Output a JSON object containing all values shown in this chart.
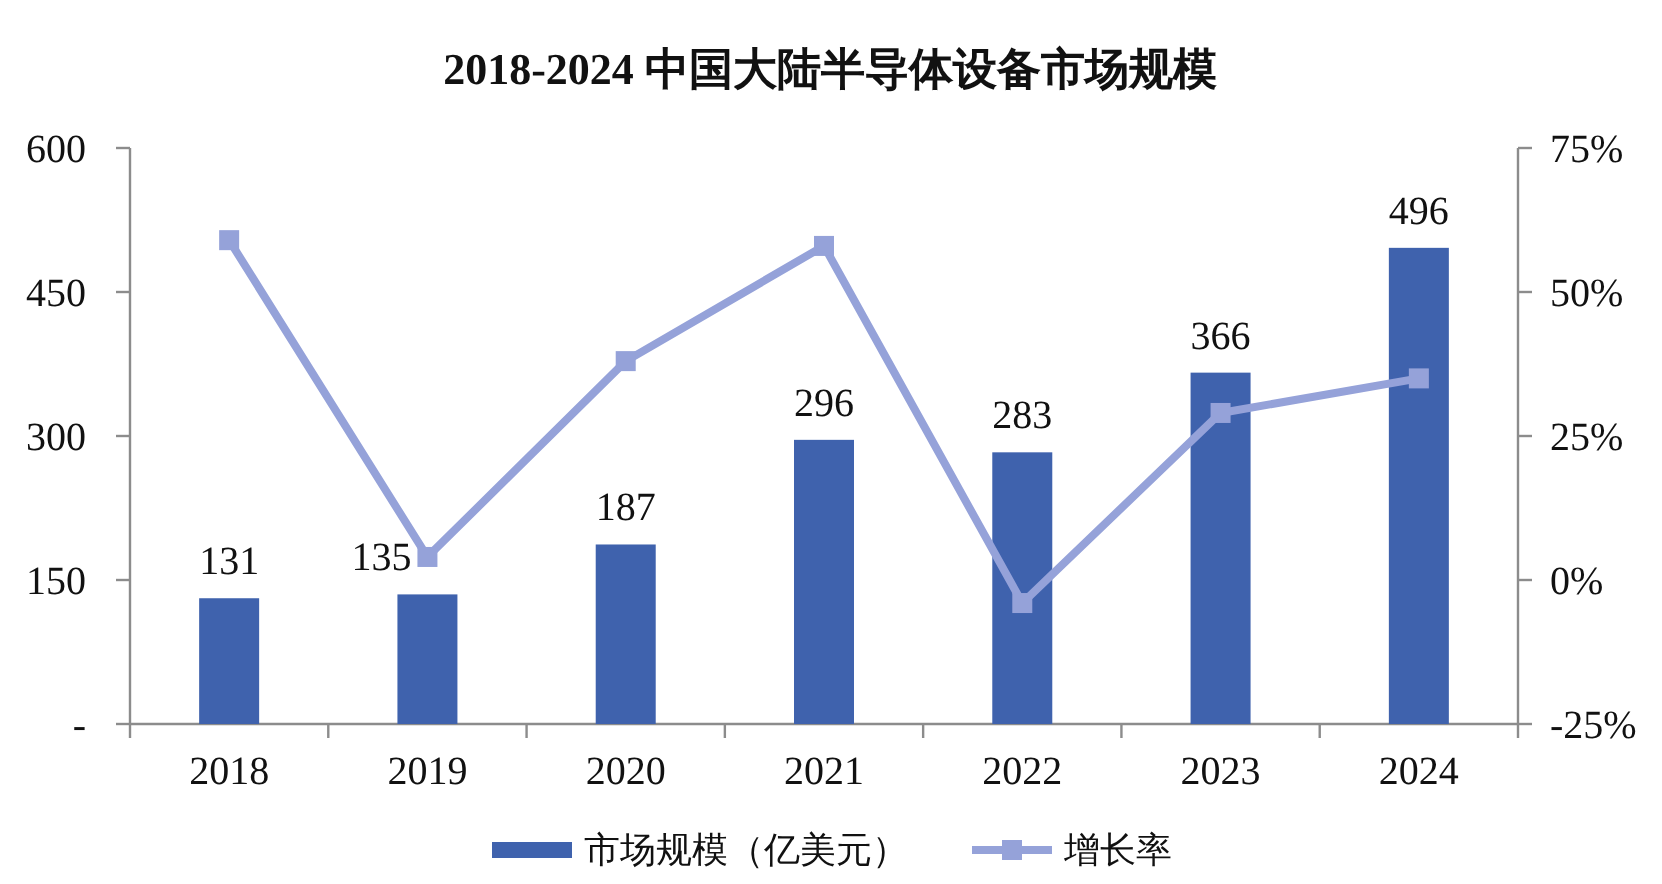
{
  "chart_data": {
    "type": "bar",
    "title": "2018-2024 中国大陆半导体设备市场规模",
    "categories": [
      "2018",
      "2019",
      "2020",
      "2021",
      "2022",
      "2023",
      "2024"
    ],
    "series": [
      {
        "name": "市场规模（亿美元）",
        "color": "#3f62ad",
        "values": [
          131,
          135,
          187,
          296,
          283,
          366,
          496
        ],
        "value_labels": [
          "131",
          "135",
          "187",
          "296",
          "283",
          "366",
          "496"
        ]
      },
      {
        "name": "增长率",
        "type": "line",
        "axis": "y2",
        "color": "#95a2d9",
        "marker": "square",
        "values": [
          59,
          4,
          38,
          58,
          -4,
          29,
          35
        ]
      }
    ],
    "ylim": [
      0,
      600
    ],
    "yticks": [
      {
        "value": 0,
        "label": "-"
      },
      150,
      300,
      450,
      600
    ],
    "y2lim": [
      -25,
      75
    ],
    "y2ticks": [
      {
        "value": -25,
        "label": "-25%"
      },
      {
        "value": 0,
        "label": "0%"
      },
      {
        "value": 25,
        "label": "25%"
      },
      {
        "value": 50,
        "label": "50%"
      },
      {
        "value": 75,
        "label": "75%"
      }
    ],
    "legend": "bottom"
  }
}
